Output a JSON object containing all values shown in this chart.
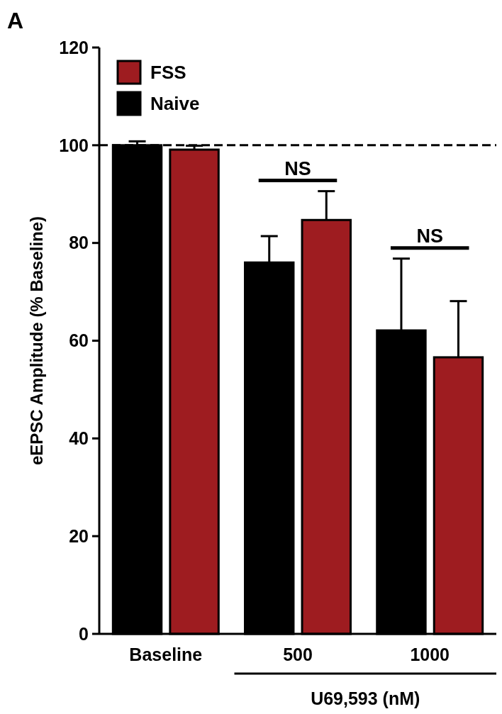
{
  "chart_data": {
    "type": "bar",
    "ylabel": "eEPSC Amplitude (% Baseline)",
    "xlabel": "U69,593 (nM)",
    "categories": [
      "Baseline",
      "500",
      "1000"
    ],
    "series": [
      {
        "name": "Naive",
        "color": "#000000",
        "values": [
          100,
          76,
          62.1
        ],
        "errors": [
          0.8,
          5.4,
          14.7
        ]
      },
      {
        "name": "FSS",
        "color": "#9e1c20",
        "values": [
          99.1,
          84.7,
          56.6
        ],
        "errors": [
          0.8,
          5.9,
          11.5
        ]
      }
    ],
    "ylim": [
      0,
      120
    ],
    "yticks": [
      0,
      20,
      40,
      60,
      80,
      100,
      120
    ],
    "grid": false,
    "legend": "top left",
    "ref_lines": [
      {
        "axis": "y",
        "value": 100,
        "line_style": "dashed",
        "color": "#000000"
      }
    ],
    "annotations": [
      "A",
      "NS",
      "NS"
    ]
  }
}
